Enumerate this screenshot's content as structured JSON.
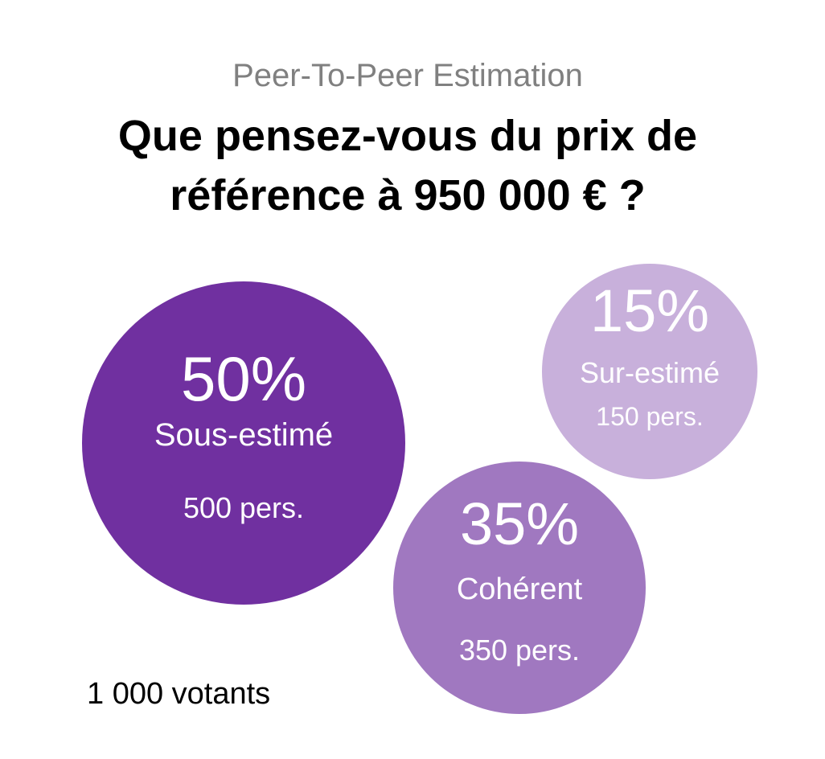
{
  "header": {
    "subtitle": "Peer-To-Peer Estimation",
    "title": "Que pensez-vous du prix de référence à 950 000 € ?"
  },
  "chart_data": {
    "type": "bubble",
    "title": "Que pensez-vous du prix de référence à 950 000 € ?",
    "subtitle": "Peer-To-Peer Estimation",
    "total_label": "1 000 votants",
    "total": 1000,
    "series": [
      {
        "key": "under",
        "label": "Sous-estimé",
        "percent": 50,
        "percent_label": "50%",
        "count": 500,
        "count_label": "500 pers.",
        "color": "#7030A0"
      },
      {
        "key": "coherent",
        "label": "Cohérent",
        "percent": 35,
        "percent_label": "35%",
        "count": 350,
        "count_label": "350 pers.",
        "color": "#A078C0"
      },
      {
        "key": "over",
        "label": "Sur-estimé",
        "percent": 15,
        "percent_label": "15%",
        "count": 150,
        "count_label": "150 pers.",
        "color": "#C8B0DB"
      }
    ]
  },
  "footer": {
    "voters": "1 000 votants"
  }
}
